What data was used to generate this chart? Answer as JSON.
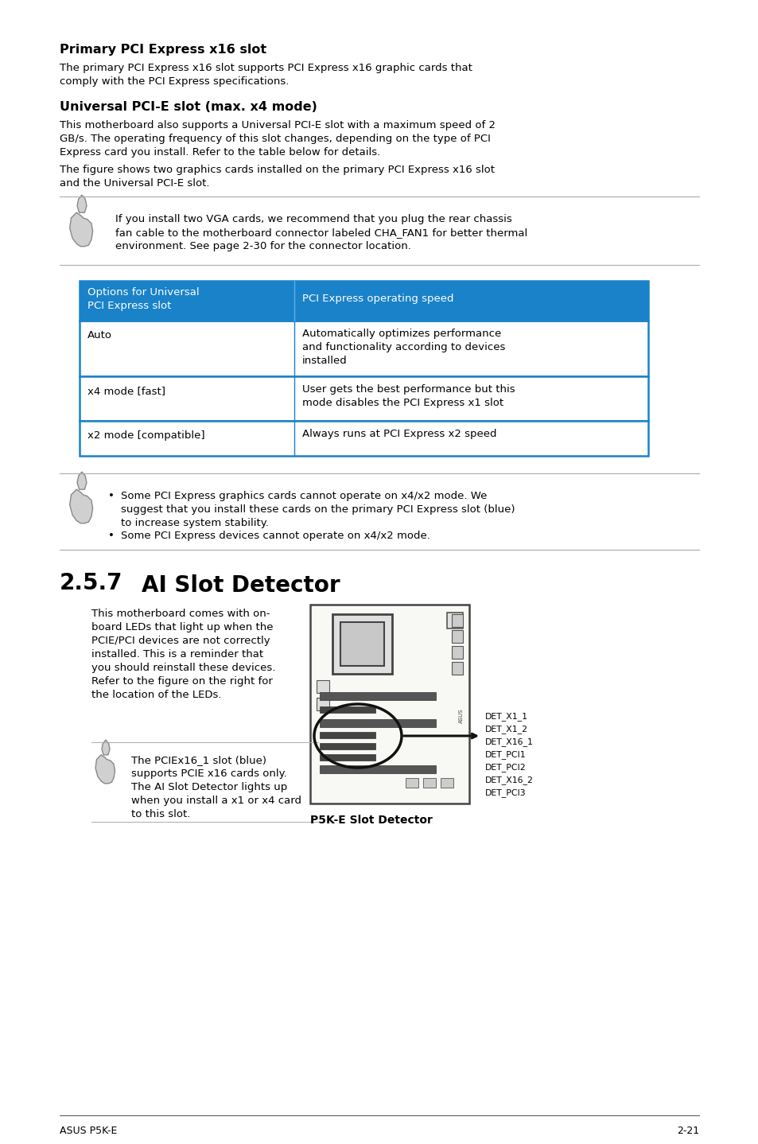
{
  "bg_color": "#ffffff",
  "text_color": "#000000",
  "header_bg": "#1a82c8",
  "header_text": "#ffffff",
  "table_border": "#1a82c8",
  "section_title1": "Primary PCI Express x16 slot",
  "section_body1": "The primary PCI Express x16 slot supports PCI Express x16 graphic cards that\ncomply with the PCI Express specifications.",
  "section_title2": "Universal PCI-E slot (max. x4 mode)",
  "section_body2a": "This motherboard also supports a Universal PCI-E slot with a maximum speed of 2\nGB/s. The operating frequency of this slot changes, depending on the type of PCI\nExpress card you install. Refer to the table below for details.",
  "section_body2b": "The figure shows two graphics cards installed on the primary PCI Express x16 slot\nand the Universal PCI-E slot.",
  "note1": "If you install two VGA cards, we recommend that you plug the rear chassis\nfan cable to the motherboard connector labeled CHA_FAN1 for better thermal\nenvironment. See page 2-30 for the connector location.",
  "table_header_col1": "Options for Universal\nPCI Express slot",
  "table_header_col2": "PCI Express operating speed",
  "table_rows": [
    [
      "Auto",
      "Automatically optimizes performance\nand functionality according to devices\ninstalled"
    ],
    [
      "x4 mode [fast]",
      "User gets the best performance but this\nmode disables the PCI Express x1 slot"
    ],
    [
      "x2 mode [compatible]",
      "Always runs at PCI Express x2 speed"
    ]
  ],
  "note2_bullets": [
    "Some PCI Express graphics cards cannot operate on x4/x2 mode. We\nsuggest that you install these cards on the primary PCI Express slot (blue)\nto increase system stability.",
    "Some PCI Express devices cannot operate on x4/x2 mode."
  ],
  "section_num": "2.5.7",
  "section_title3": "AI Slot Detector",
  "section_body3": "This motherboard comes with on-\nboard LEDs that light up when the\nPCIE/PCI devices are not correctly\ninstalled. This is a reminder that\nyou should reinstall these devices.\nRefer to the figure on the right for\nthe location of the LEDs.",
  "note3": "The PCIEx16_1 slot (blue)\nsupports PCIE x16 cards only.\nThe AI Slot Detector lights up\nwhen you install a x1 or x4 card\nto this slot.",
  "det_labels": [
    "DET_X1_1",
    "DET_X1_2",
    "DET_X16_1",
    "DET_PCI1",
    "DET_PCI2",
    "DET_X16_2",
    "DET_PCI3"
  ],
  "figure_caption": "P5K-E Slot Detector",
  "footer_left": "ASUS P5K-E",
  "footer_right": "2-21"
}
